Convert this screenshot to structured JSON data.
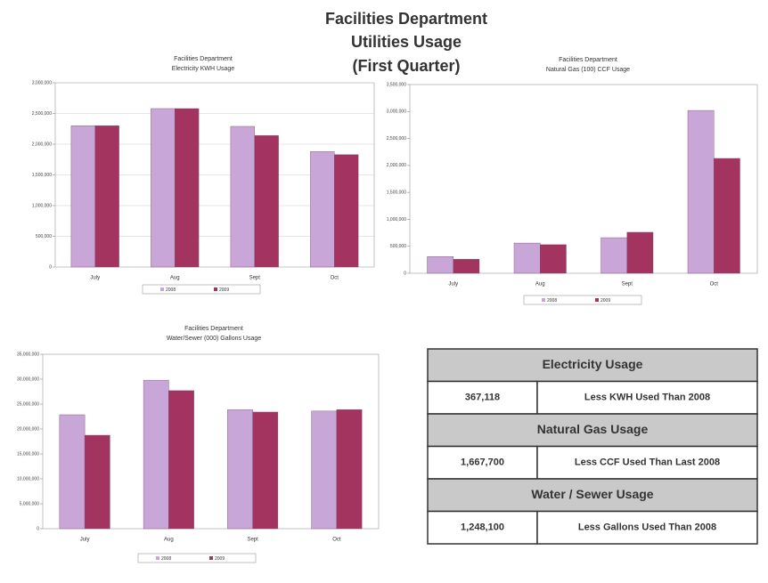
{
  "title": [
    "Facilities Department",
    "Utilities Usage",
    "(First Quarter)"
  ],
  "chart_data": [
    {
      "type": "bar",
      "title": [
        "Facilities Department",
        "Electricity KWH Usage"
      ],
      "categories": [
        "July",
        "Aug",
        "Sept",
        "Oct"
      ],
      "series": [
        {
          "name": "2008",
          "color": "#c9a6d8",
          "values": [
            2300000,
            2580000,
            2290000,
            1880000
          ]
        },
        {
          "name": "2009",
          "color": "#a3335f",
          "values": [
            2300000,
            2580000,
            2140000,
            1830000
          ]
        }
      ],
      "ylim": [
        0,
        3000000
      ],
      "yticks": [
        {
          "value": 0,
          "label": "0"
        },
        {
          "value": 500000,
          "label": "500,000"
        },
        {
          "value": 1000000,
          "label": "1,000,000"
        },
        {
          "value": 1500000,
          "label": "1,500,000"
        },
        {
          "value": 2000000,
          "label": "2,000,000"
        },
        {
          "value": 2500000,
          "label": "2,500,000"
        },
        {
          "value": 3000000,
          "label": "3,000,000"
        }
      ],
      "grid": true
    },
    {
      "type": "bar",
      "title": [
        "Facilities Department",
        "Natural Gas (100) CCF Usage"
      ],
      "categories": [
        "July",
        "Aug",
        "Sept",
        "Oct"
      ],
      "series": [
        {
          "name": "2008",
          "color": "#c9a6d8",
          "values": [
            310000,
            560000,
            660000,
            3020000
          ]
        },
        {
          "name": "2009",
          "color": "#a3335f",
          "values": [
            260000,
            530000,
            760000,
            2130000
          ]
        }
      ],
      "ylim": [
        0,
        3500000
      ],
      "yticks": [
        {
          "value": 0,
          "label": "0"
        },
        {
          "value": 500000,
          "label": "500,000"
        },
        {
          "value": 1000000,
          "label": "1,000,000"
        },
        {
          "value": 1500000,
          "label": "1,500,000"
        },
        {
          "value": 2000000,
          "label": "2,000,000"
        },
        {
          "value": 2500000,
          "label": "2,500,000"
        },
        {
          "value": 3000000,
          "label": "3,000,000"
        },
        {
          "value": 3500000,
          "label": "3,500,000"
        }
      ],
      "grid": false
    },
    {
      "type": "bar",
      "title": [
        "Facilities Department",
        "Water/Sewer (000) Gallons Usage"
      ],
      "categories": [
        "July",
        "Aug",
        "Sept",
        "Oct"
      ],
      "series": [
        {
          "name": "2008",
          "color": "#c9a6d8",
          "values": [
            22860000,
            29800000,
            23900000,
            23600000
          ]
        },
        {
          "name": "2009",
          "color": "#a3335f",
          "values": [
            18750000,
            27700000,
            23400000,
            23900000
          ]
        }
      ],
      "ylim": [
        0,
        35000000
      ],
      "yticks": [
        {
          "value": 0,
          "label": "0"
        },
        {
          "value": 5000000,
          "label": "5,000,000"
        },
        {
          "value": 10000000,
          "label": "10,000,000"
        },
        {
          "value": 15000000,
          "label": "15,000,000"
        },
        {
          "value": 20000000,
          "label": "20,000,000"
        },
        {
          "value": 25000000,
          "label": "25,000,000"
        },
        {
          "value": 30000000,
          "label": "30,000,000"
        },
        {
          "value": 35000000,
          "label": "35,000,000"
        }
      ],
      "grid": false
    }
  ],
  "summary_table": {
    "sections": [
      {
        "heading": "Electricity Usage",
        "amount": "367,118",
        "note": "Less KWH Used Than 2008"
      },
      {
        "heading": "Natural Gas Usage",
        "amount": "1,667,700",
        "note": "Less CCF Used Than Last 2008"
      },
      {
        "heading": "Water / Sewer Usage",
        "amount": "1,248,100",
        "note": "Less Gallons Used Than 2008"
      }
    ]
  }
}
